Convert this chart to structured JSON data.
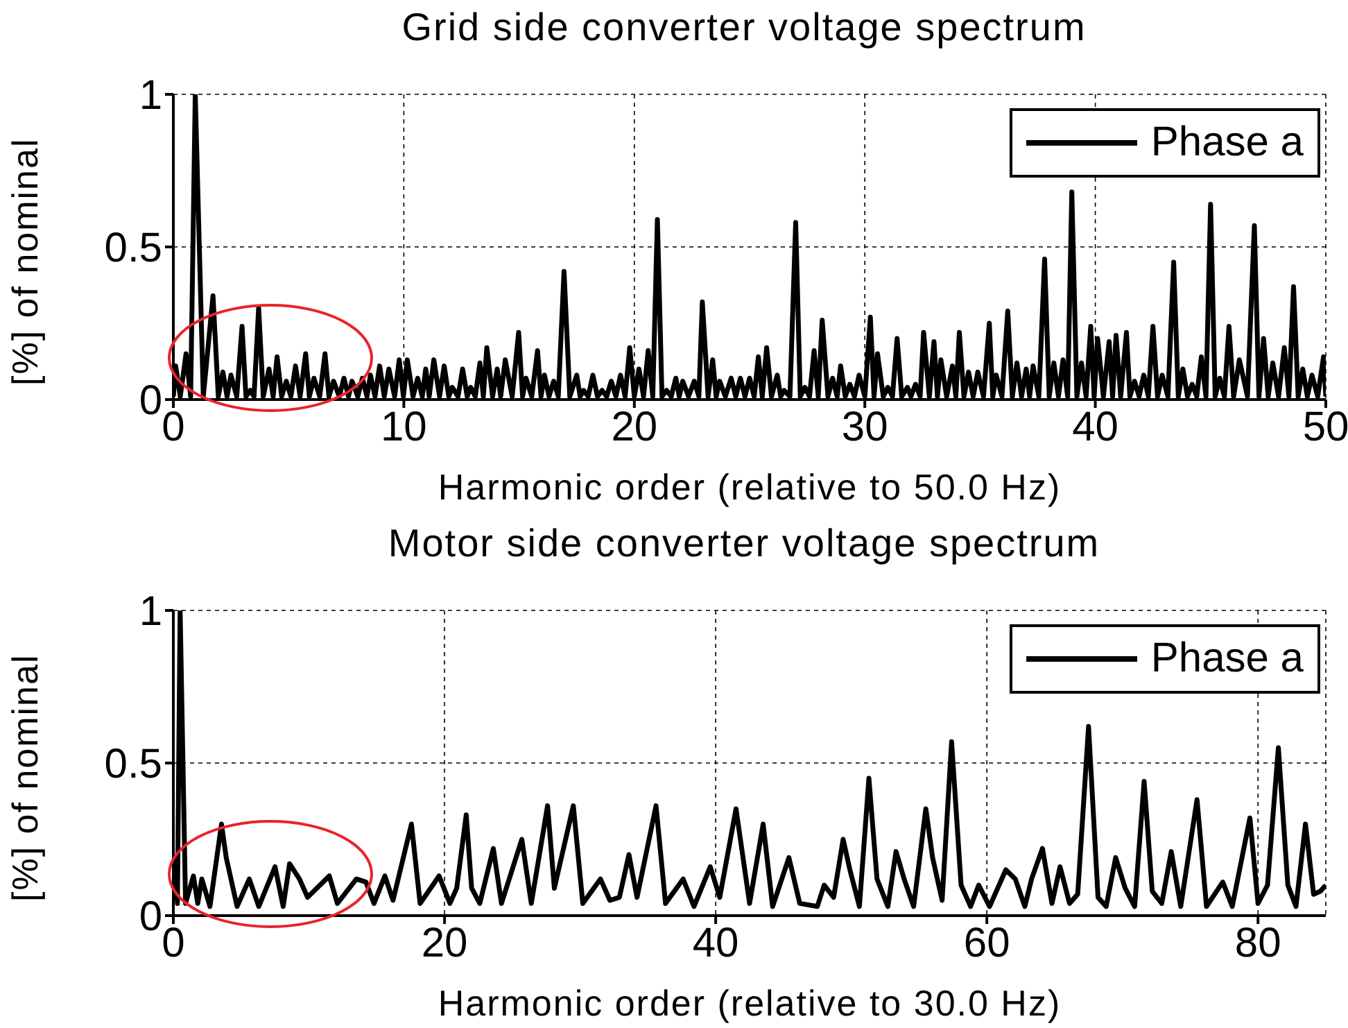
{
  "chart_data": [
    {
      "type": "line",
      "title": "Grid side converter voltage spectrum",
      "xlabel": "Harmonic order (relative to 50.0 Hz)",
      "ylabel": "[%] of nominal",
      "xlim": [
        0,
        50
      ],
      "xticks": [
        0,
        10,
        20,
        30,
        40,
        50
      ],
      "ylim": [
        0,
        1
      ],
      "yticks": [
        0,
        0.5,
        1
      ],
      "grid": true,
      "legend": "top right",
      "line_style": "solid",
      "series": [
        {
          "name": "Phase a",
          "color": "#000000",
          "x": [
            0,
            0.1,
            0.3,
            0.55,
            0.75,
            0.95,
            1.3,
            1.72,
            1.95,
            2.15,
            2.33,
            2.5,
            2.75,
            2.98,
            3.15,
            3.34,
            3.5,
            3.7,
            3.9,
            4.15,
            4.33,
            4.5,
            4.7,
            4.9,
            5.1,
            5.3,
            5.5,
            5.74,
            5.9,
            6.1,
            6.35,
            6.58,
            6.75,
            6.95,
            7.2,
            7.4,
            7.6,
            7.75,
            8.0,
            8.2,
            8.4,
            8.55,
            8.75,
            8.95,
            9.15,
            9.35,
            9.6,
            9.8,
            9.98,
            10.15,
            10.4,
            10.6,
            10.8,
            10.95,
            11.1,
            11.3,
            11.55,
            11.75,
            11.95,
            12.1,
            12.35,
            12.55,
            12.75,
            12.9,
            13.1,
            13.3,
            13.45,
            13.6,
            13.85,
            14.05,
            14.2,
            14.4,
            14.7,
            14.98,
            15.15,
            15.3,
            15.55,
            15.8,
            15.95,
            16.1,
            16.3,
            16.5,
            16.7,
            16.95,
            17.2,
            17.5,
            17.65,
            17.8,
            18.0,
            18.2,
            18.4,
            18.6,
            18.8,
            19.0,
            19.2,
            19.4,
            19.6,
            19.8,
            20.0,
            20.2,
            20.4,
            20.6,
            20.8,
            21.0,
            21.2,
            21.4,
            21.6,
            21.8,
            21.95,
            22.1,
            22.35,
            22.6,
            22.8,
            22.95,
            23.2,
            23.4,
            23.55,
            23.7,
            23.95,
            24.2,
            24.4,
            24.6,
            24.8,
            25.0,
            25.2,
            25.38,
            25.55,
            25.74,
            25.95,
            26.2,
            26.35,
            26.5,
            26.75,
            27.0,
            27.2,
            27.4,
            27.6,
            27.8,
            27.98,
            28.15,
            28.4,
            28.6,
            28.8,
            28.95,
            29.15,
            29.35,
            29.55,
            29.75,
            30.0,
            30.24,
            30.4,
            30.55,
            30.8,
            31.0,
            31.2,
            31.4,
            31.6,
            31.85,
            32.0,
            32.2,
            32.4,
            32.55,
            32.8,
            33.0,
            33.15,
            33.3,
            33.55,
            33.8,
            33.95,
            34.1,
            34.3,
            34.5,
            34.7,
            34.9,
            35.15,
            35.4,
            35.55,
            35.7,
            35.95,
            36.2,
            36.4,
            36.6,
            36.8,
            37.0,
            37.15,
            37.3,
            37.55,
            37.8,
            38.0,
            38.2,
            38.4,
            38.6,
            38.8,
            38.98,
            39.2,
            39.4,
            39.6,
            39.8,
            39.95,
            40.1,
            40.35,
            40.6,
            40.75,
            40.9,
            41.1,
            41.35,
            41.5,
            41.7,
            41.9,
            42.1,
            42.3,
            42.5,
            42.7,
            42.9,
            43.15,
            43.4,
            43.6,
            43.8,
            44.0,
            44.2,
            44.4,
            44.6,
            44.8,
            45.0,
            45.2,
            45.4,
            45.6,
            45.8,
            46.0,
            46.25,
            46.6,
            46.9,
            47.1,
            47.3,
            47.5,
            47.7,
            47.95,
            48.2,
            48.4,
            48.6,
            48.8,
            49.0,
            49.2,
            49.4,
            49.65,
            49.9,
            50
          ],
          "values": [
            0.01,
            0.11,
            0.01,
            0.15,
            0.01,
            1,
            0.01,
            0.34,
            0.01,
            0.09,
            0.01,
            0.08,
            0.01,
            0.24,
            0.01,
            0.03,
            0.01,
            0.3,
            0.01,
            0.1,
            0.01,
            0.14,
            0.01,
            0.06,
            0.01,
            0.11,
            0.01,
            0.15,
            0.01,
            0.07,
            0.01,
            0.15,
            0.01,
            0.06,
            0.01,
            0.07,
            0.01,
            0.06,
            0.01,
            0.07,
            0.01,
            0.08,
            0.01,
            0.11,
            0.01,
            0.1,
            0.01,
            0.13,
            0.01,
            0.13,
            0.01,
            0.07,
            0.01,
            0.1,
            0.01,
            0.13,
            0.01,
            0.11,
            0.01,
            0.04,
            0.01,
            0.1,
            0.01,
            0.04,
            0.01,
            0.12,
            0.01,
            0.17,
            0.01,
            0.1,
            0.01,
            0.13,
            0.01,
            0.22,
            0.01,
            0.07,
            0.01,
            0.16,
            0.01,
            0.08,
            0.01,
            0.06,
            0.01,
            0.42,
            0.01,
            0.08,
            0.01,
            0.03,
            0.01,
            0.08,
            0.01,
            0.03,
            0.01,
            0.06,
            0.01,
            0.08,
            0.01,
            0.17,
            0.01,
            0.1,
            0.01,
            0.16,
            0.01,
            0.59,
            0.01,
            0.03,
            0.01,
            0.07,
            0.01,
            0.06,
            0.01,
            0.06,
            0.01,
            0.32,
            0.01,
            0.13,
            0.01,
            0.06,
            0.01,
            0.07,
            0.01,
            0.07,
            0.01,
            0.07,
            0.01,
            0.14,
            0.01,
            0.17,
            0.01,
            0.08,
            0.01,
            0.03,
            0.01,
            0.58,
            0.01,
            0.04,
            0.01,
            0.16,
            0.01,
            0.26,
            0.01,
            0.07,
            0.01,
            0.11,
            0.01,
            0.05,
            0.01,
            0.08,
            0.01,
            0.27,
            0.01,
            0.15,
            0.01,
            0.04,
            0.01,
            0.2,
            0.01,
            0.04,
            0.01,
            0.05,
            0.01,
            0.22,
            0.01,
            0.19,
            0.01,
            0.13,
            0.01,
            0.11,
            0.01,
            0.22,
            0.01,
            0.09,
            0.01,
            0.09,
            0.01,
            0.25,
            0.01,
            0.08,
            0.01,
            0.29,
            0.01,
            0.12,
            0.01,
            0.1,
            0.01,
            0.11,
            0.01,
            0.46,
            0.01,
            0.12,
            0.01,
            0.13,
            0.01,
            0.68,
            0.01,
            0.12,
            0.01,
            0.24,
            0.01,
            0.2,
            0.01,
            0.19,
            0.01,
            0.21,
            0.01,
            0.22,
            0.01,
            0.06,
            0.01,
            0.08,
            0.01,
            0.24,
            0.01,
            0.08,
            0.01,
            0.45,
            0.01,
            0.1,
            0.01,
            0.05,
            0.01,
            0.14,
            0.01,
            0.64,
            0.01,
            0.07,
            0.01,
            0.24,
            0.01,
            0.13,
            0.01,
            0.57,
            0.01,
            0.2,
            0.01,
            0.12,
            0.01,
            0.17,
            0.01,
            0.37,
            0.01,
            0.1,
            0.01,
            0.08,
            0.01,
            0.14,
            0.01
          ]
        }
      ]
    },
    {
      "type": "line",
      "title": "Motor side converter voltage spectrum",
      "xlabel": "Harmonic order (relative to 30.0 Hz)",
      "ylabel": "[%] of nominal",
      "xlim": [
        0,
        85
      ],
      "xticks": [
        0,
        20,
        40,
        60,
        80
      ],
      "ylim": [
        0,
        1
      ],
      "yticks": [
        0,
        0.5,
        1
      ],
      "grid": true,
      "legend": "top right",
      "line_style": "solid",
      "series": [
        {
          "name": "Phase a",
          "color": "#000000",
          "x": [
            0,
            0.17,
            0.3,
            0.5,
            0.9,
            1.48,
            1.8,
            2.1,
            2.7,
            3.55,
            3.9,
            4.7,
            5.6,
            6.3,
            7.5,
            8.1,
            8.57,
            9.3,
            9.9,
            11.5,
            12.1,
            13.5,
            14.2,
            14.8,
            15.6,
            16.2,
            17.56,
            18.2,
            19.6,
            20.4,
            20.9,
            21.6,
            22.0,
            22.6,
            23.6,
            24.2,
            25.7,
            26.4,
            27.6,
            28.1,
            29.5,
            30.2,
            31.5,
            32.2,
            32.9,
            33.6,
            34.2,
            35.6,
            36.3,
            37.6,
            38.4,
            39.6,
            40.3,
            41.5,
            42.5,
            43.5,
            44.2,
            45.4,
            46.2,
            47.5,
            48.0,
            48.7,
            49.4,
            49.9,
            50.6,
            51.3,
            51.9,
            52.7,
            53.3,
            53.9,
            54.6,
            55.5,
            56.0,
            56.7,
            57.4,
            58.1,
            58.8,
            59.4,
            60.2,
            61.4,
            62.1,
            62.8,
            63.3,
            64.1,
            64.8,
            65.4,
            66.1,
            66.7,
            67.5,
            68.2,
            68.8,
            69.5,
            70.2,
            70.9,
            71.6,
            72.2,
            72.9,
            73.6,
            74.3,
            75.5,
            76.2,
            77.4,
            78.1,
            79.4,
            80.0,
            80.7,
            81.5,
            82.2,
            82.8,
            83.5,
            84.1,
            84.6,
            85
          ],
          "values": [
            0.05,
            0.19,
            0.04,
            1,
            0.04,
            0.13,
            0.04,
            0.12,
            0.03,
            0.3,
            0.19,
            0.03,
            0.12,
            0.03,
            0.16,
            0.03,
            0.17,
            0.12,
            0.06,
            0.13,
            0.04,
            0.12,
            0.11,
            0.04,
            0.13,
            0.05,
            0.3,
            0.04,
            0.13,
            0.04,
            0.09,
            0.33,
            0.09,
            0.04,
            0.22,
            0.04,
            0.25,
            0.04,
            0.36,
            0.09,
            0.36,
            0.04,
            0.12,
            0.05,
            0.06,
            0.2,
            0.06,
            0.36,
            0.04,
            0.12,
            0.03,
            0.16,
            0.06,
            0.35,
            0.04,
            0.3,
            0.03,
            0.19,
            0.04,
            0.03,
            0.1,
            0.06,
            0.25,
            0.15,
            0.03,
            0.45,
            0.12,
            0.03,
            0.21,
            0.12,
            0.03,
            0.35,
            0.19,
            0.05,
            0.57,
            0.1,
            0.03,
            0.1,
            0.03,
            0.15,
            0.12,
            0.03,
            0.12,
            0.22,
            0.04,
            0.16,
            0.04,
            0.07,
            0.62,
            0.06,
            0.03,
            0.19,
            0.09,
            0.03,
            0.44,
            0.08,
            0.04,
            0.21,
            0.03,
            0.38,
            0.03,
            0.11,
            0.03,
            0.32,
            0.04,
            0.1,
            0.55,
            0.1,
            0.03,
            0.3,
            0.07,
            0.08,
            0.1
          ]
        }
      ]
    }
  ]
}
